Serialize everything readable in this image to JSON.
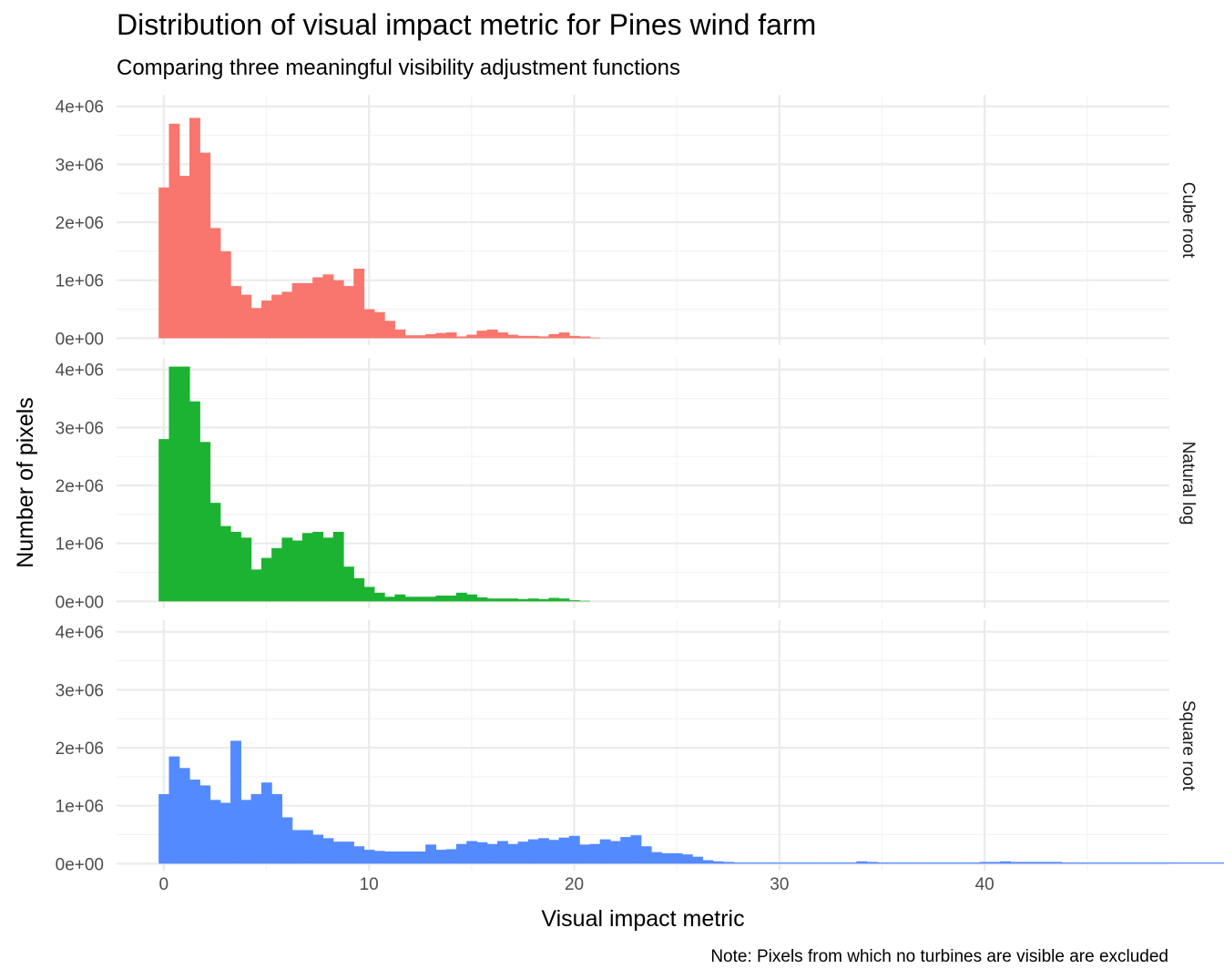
{
  "chart_data": {
    "type": "bar",
    "title": "Distribution of visual impact metric for Pines wind farm",
    "subtitle": "Comparing three meaningful visibility adjustment functions",
    "xlabel": "Visual impact metric",
    "ylabel": "Number of pixels",
    "caption": "Note: Pixels from which no turbines are visible are excluded",
    "xlim": [
      -2.3,
      49
    ],
    "ylim": [
      -120000.0,
      4200000.0
    ],
    "x_ticks": [
      0,
      10,
      20,
      30,
      40
    ],
    "x_tick_labels": [
      "0",
      "10",
      "20",
      "30",
      "40"
    ],
    "y_ticks": [
      0,
      1000000,
      2000000,
      3000000,
      4000000
    ],
    "y_tick_labels": [
      "0e+00",
      "1e+06",
      "2e+06",
      "3e+06",
      "4e+06"
    ],
    "grid": true,
    "legend": "none",
    "bin_width": 0.5,
    "bin_start": -0.25,
    "facets": [
      {
        "name": "Cube root",
        "color": "#F8766D",
        "values": [
          2600000,
          3700000,
          2800000,
          3800000,
          3200000,
          1900000,
          1500000,
          900000,
          750000,
          520000,
          650000,
          750000,
          800000,
          950000,
          950000,
          1050000,
          1100000,
          1000000,
          900000,
          1200000,
          500000,
          450000,
          300000,
          150000,
          50000,
          50000,
          70000,
          90000,
          100000,
          30000,
          60000,
          130000,
          150000,
          100000,
          60000,
          40000,
          40000,
          30000,
          70000,
          100000,
          40000,
          30000,
          10000
        ]
      },
      {
        "name": "Natural log",
        "color": "#1DB332",
        "values": [
          2800000,
          4050000,
          4050000,
          3450000,
          2750000,
          1700000,
          1300000,
          1200000,
          1100000,
          550000,
          750000,
          920000,
          1100000,
          1050000,
          1180000,
          1200000,
          1100000,
          1200000,
          600000,
          400000,
          250000,
          150000,
          80000,
          120000,
          80000,
          80000,
          80000,
          100000,
          100000,
          150000,
          120000,
          70000,
          50000,
          50000,
          50000,
          40000,
          50000,
          40000,
          60000,
          50000,
          20000,
          10000
        ]
      },
      {
        "name": "Square root",
        "color": "#548AFF",
        "values": [
          1200000,
          1850000,
          1650000,
          1450000,
          1350000,
          1100000,
          1050000,
          2120000,
          1100000,
          1200000,
          1400000,
          1200000,
          800000,
          580000,
          580000,
          500000,
          440000,
          380000,
          380000,
          300000,
          240000,
          220000,
          210000,
          210000,
          210000,
          210000,
          330000,
          240000,
          250000,
          340000,
          390000,
          370000,
          340000,
          390000,
          340000,
          380000,
          420000,
          440000,
          410000,
          450000,
          480000,
          330000,
          340000,
          420000,
          390000,
          460000,
          490000,
          300000,
          200000,
          180000,
          180000,
          160000,
          120000,
          60000,
          40000,
          30000,
          20000,
          20000,
          20000,
          20000,
          20000,
          20000,
          20000,
          20000,
          20000,
          20000,
          20000,
          20000,
          40000,
          30000,
          20000,
          20000,
          20000,
          20000,
          20000,
          20000,
          20000,
          20000,
          20000,
          20000,
          30000,
          30000,
          40000,
          30000,
          30000,
          30000,
          30000,
          30000,
          20000,
          20000,
          20000,
          20000,
          20000,
          20000,
          20000,
          20000,
          20000,
          20000,
          20000,
          20000,
          20000,
          20000,
          20000,
          20000,
          30000,
          30000,
          40000,
          40000,
          30000,
          20000,
          20000,
          10000,
          10000,
          10000,
          10000,
          10000,
          10000,
          10000
        ]
      }
    ]
  }
}
